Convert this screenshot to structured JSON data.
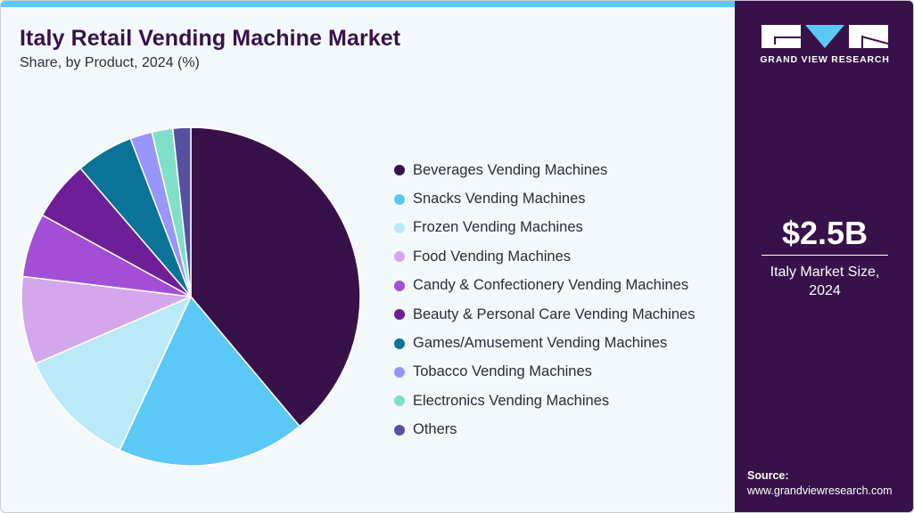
{
  "header": {
    "title": "Italy Retail Vending Machine Market",
    "subtitle": "Share, by Product, 2024 (%)"
  },
  "brand": {
    "name": "GRAND VIEW RESEARCH",
    "colors": {
      "panel": "#38114a",
      "accent": "#5bc8f5",
      "background": "#f3f8fb"
    }
  },
  "side_panel": {
    "market_value": "$2.5B",
    "market_label_line1": "Italy Market Size,",
    "market_label_line2": "2024",
    "source_title": "Source:",
    "source_url": "www.grandviewresearch.com"
  },
  "chart_data": {
    "type": "pie",
    "title": "Italy Retail Vending Machine Market",
    "subtitle": "Share, by Product, 2024 (%)",
    "start_angle": "12 o'clock, clockwise",
    "legend_position": "right",
    "categories": [
      "Beverages Vending Machines",
      "Snacks Vending Machines",
      "Frozen Vending Machines",
      "Food Vending Machines",
      "Candy & Confectionery Vending Machines",
      "Beauty & Personal Care Vending Machines",
      "Games/Amusement Vending Machines",
      "Tobacco Vending Machines",
      "Electronics Vending Machines",
      "Others"
    ],
    "values": [
      38.9,
      18.0,
      11.6,
      8.4,
      6.1,
      5.7,
      5.5,
      2.1,
      2.0,
      1.7
    ],
    "colors": [
      "#38114a",
      "#5bc8f5",
      "#bce9f8",
      "#d4a7ec",
      "#a24fd6",
      "#6e1f98",
      "#0a7397",
      "#9896fb",
      "#7fdfc9",
      "#56519e"
    ]
  },
  "legend": {
    "items": [
      {
        "label": "Beverages Vending Machines",
        "color": "#38114a"
      },
      {
        "label": "Snacks Vending Machines",
        "color": "#5bc8f5"
      },
      {
        "label": "Frozen Vending Machines",
        "color": "#bce9f8"
      },
      {
        "label": "Food Vending Machines",
        "color": "#d4a7ec"
      },
      {
        "label": "Candy & Confectionery Vending Machines",
        "color": "#a24fd6"
      },
      {
        "label": "Beauty & Personal Care Vending Machines",
        "color": "#6e1f98"
      },
      {
        "label": "Games/Amusement Vending Machines",
        "color": "#0a7397"
      },
      {
        "label": "Tobacco Vending Machines",
        "color": "#9896fb"
      },
      {
        "label": "Electronics Vending Machines",
        "color": "#7fdfc9"
      },
      {
        "label": "Others",
        "color": "#56519e"
      }
    ]
  }
}
